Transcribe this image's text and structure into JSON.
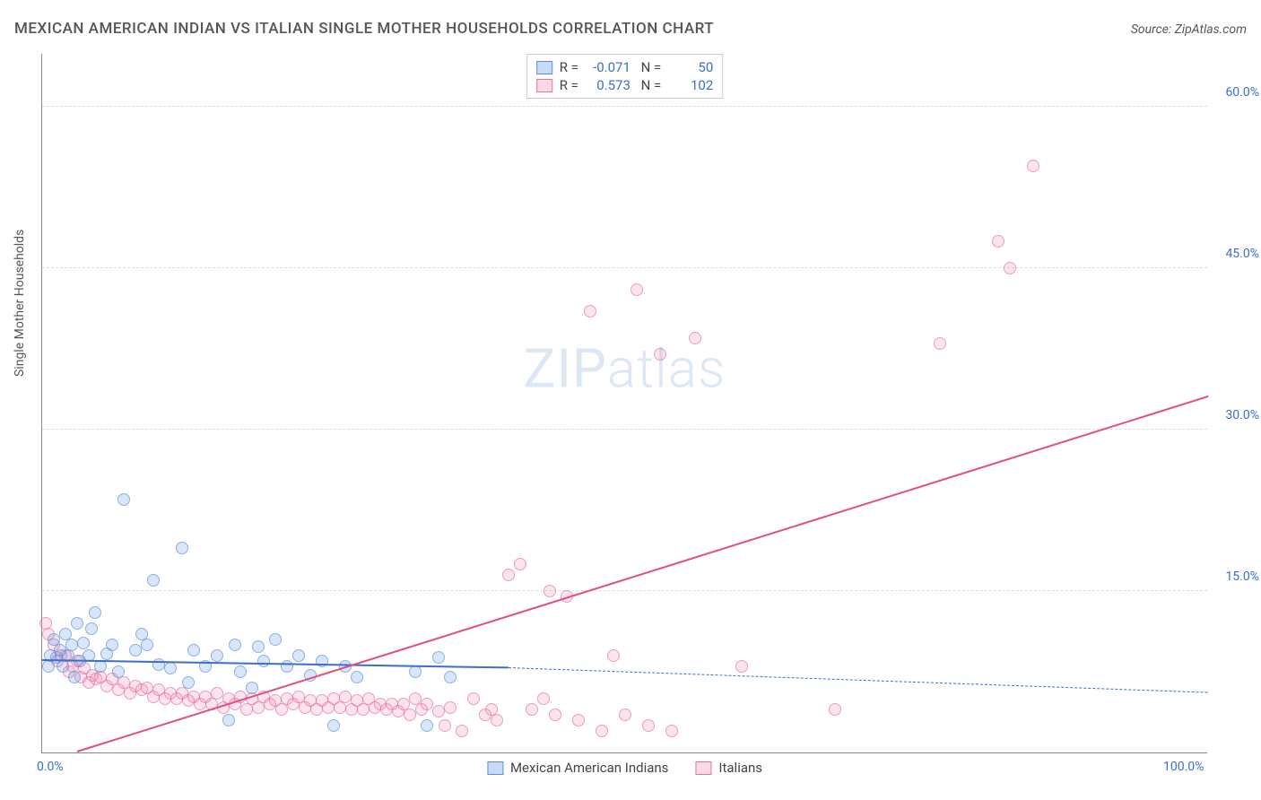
{
  "title": "MEXICAN AMERICAN INDIAN VS ITALIAN SINGLE MOTHER HOUSEHOLDS CORRELATION CHART",
  "source": "Source: ZipAtlas.com",
  "y_axis_label": "Single Mother Households",
  "watermark_bold": "ZIP",
  "watermark_light": "atlas",
  "chart": {
    "type": "scatter",
    "xlim": [
      0,
      100
    ],
    "ylim": [
      0,
      65
    ],
    "x_ticks": [
      {
        "pos": 0,
        "label": "0.0%"
      },
      {
        "pos": 100,
        "label": "100.0%"
      }
    ],
    "y_ticks": [
      {
        "pos": 15,
        "label": "15.0%"
      },
      {
        "pos": 30,
        "label": "30.0%"
      },
      {
        "pos": 45,
        "label": "45.0%"
      },
      {
        "pos": 60,
        "label": "60.0%"
      }
    ],
    "grid_positions_y": [
      15,
      30,
      45,
      60
    ],
    "grid_color": "#dddddd",
    "background": "#ffffff",
    "series": [
      {
        "name": "Mexican American Indians",
        "color_fill": "rgba(100,150,230,0.35)",
        "color_stroke": "#5a8fd6",
        "R": "-0.071",
        "N": "50",
        "trend": {
          "x1": 0,
          "y1": 8.5,
          "x2": 40,
          "y2": 7.8,
          "solid_until_x": 40,
          "dash_to_x": 100,
          "dash_y": 5.5,
          "color": "#3b6fc9",
          "width": 2
        },
        "points": [
          [
            0.5,
            8
          ],
          [
            0.7,
            9
          ],
          [
            1,
            10.5
          ],
          [
            1.2,
            8.8
          ],
          [
            1.5,
            9.5
          ],
          [
            1.8,
            8
          ],
          [
            2,
            11
          ],
          [
            2.2,
            9
          ],
          [
            2.5,
            10
          ],
          [
            2.8,
            7
          ],
          [
            3,
            12
          ],
          [
            3.2,
            8.5
          ],
          [
            3.5,
            10.2
          ],
          [
            4,
            9
          ],
          [
            4.2,
            11.5
          ],
          [
            4.5,
            13
          ],
          [
            5,
            8
          ],
          [
            5.5,
            9.2
          ],
          [
            6,
            10
          ],
          [
            6.5,
            7.5
          ],
          [
            7,
            23.5
          ],
          [
            8,
            9.5
          ],
          [
            8.5,
            11
          ],
          [
            9,
            10
          ],
          [
            9.5,
            16
          ],
          [
            10,
            8.2
          ],
          [
            11,
            7.8
          ],
          [
            12,
            19
          ],
          [
            12.5,
            6.5
          ],
          [
            13,
            9.5
          ],
          [
            14,
            8
          ],
          [
            15,
            9
          ],
          [
            16,
            3
          ],
          [
            16.5,
            10
          ],
          [
            17,
            7.5
          ],
          [
            18,
            6
          ],
          [
            18.5,
            9.8
          ],
          [
            19,
            8.5
          ],
          [
            20,
            10.5
          ],
          [
            21,
            8
          ],
          [
            22,
            9
          ],
          [
            23,
            7.2
          ],
          [
            24,
            8.5
          ],
          [
            25,
            2.5
          ],
          [
            26,
            8
          ],
          [
            27,
            7
          ],
          [
            32,
            7.5
          ],
          [
            33,
            2.5
          ],
          [
            34,
            8.8
          ],
          [
            35,
            7
          ]
        ]
      },
      {
        "name": "Italians",
        "color_fill": "rgba(240,130,170,0.30)",
        "color_stroke": "#e573a0",
        "R": "0.573",
        "N": "102",
        "trend": {
          "x1": 3,
          "y1": 0,
          "x2": 100,
          "y2": 33,
          "color": "#e14d84",
          "width": 2.2
        },
        "points": [
          [
            0.3,
            12
          ],
          [
            0.5,
            11
          ],
          [
            1,
            10
          ],
          [
            1.3,
            8.5
          ],
          [
            1.6,
            9
          ],
          [
            2,
            9
          ],
          [
            2.3,
            7.5
          ],
          [
            2.6,
            8
          ],
          [
            3,
            8.5
          ],
          [
            3.3,
            7
          ],
          [
            3.6,
            7.8
          ],
          [
            4,
            6.5
          ],
          [
            4.3,
            7.2
          ],
          [
            4.6,
            6.8
          ],
          [
            5,
            7
          ],
          [
            5.5,
            6.2
          ],
          [
            6,
            6.8
          ],
          [
            6.5,
            5.8
          ],
          [
            7,
            6.5
          ],
          [
            7.5,
            5.5
          ],
          [
            8,
            6.2
          ],
          [
            8.5,
            5.8
          ],
          [
            9,
            6
          ],
          [
            9.5,
            5.2
          ],
          [
            10,
            5.8
          ],
          [
            10.5,
            5
          ],
          [
            11,
            5.5
          ],
          [
            11.5,
            5
          ],
          [
            12,
            5.5
          ],
          [
            12.5,
            4.8
          ],
          [
            13,
            5.2
          ],
          [
            13.5,
            4.5
          ],
          [
            14,
            5.2
          ],
          [
            14.5,
            4.5
          ],
          [
            15,
            5.5
          ],
          [
            15.5,
            4.2
          ],
          [
            16,
            5
          ],
          [
            16.5,
            4.5
          ],
          [
            17,
            5.2
          ],
          [
            17.5,
            4
          ],
          [
            18,
            5
          ],
          [
            18.5,
            4.2
          ],
          [
            19,
            5.2
          ],
          [
            19.5,
            4.5
          ],
          [
            20,
            4.8
          ],
          [
            20.5,
            4
          ],
          [
            21,
            5
          ],
          [
            21.5,
            4.5
          ],
          [
            22,
            5.2
          ],
          [
            22.5,
            4.2
          ],
          [
            23,
            4.8
          ],
          [
            23.5,
            4
          ],
          [
            24,
            4.8
          ],
          [
            24.5,
            4.2
          ],
          [
            25,
            5
          ],
          [
            25.5,
            4.2
          ],
          [
            26,
            5.2
          ],
          [
            26.5,
            4
          ],
          [
            27,
            4.8
          ],
          [
            27.5,
            4
          ],
          [
            28,
            5
          ],
          [
            28.5,
            4.2
          ],
          [
            29,
            4.5
          ],
          [
            29.5,
            4
          ],
          [
            30,
            4.5
          ],
          [
            30.5,
            3.8
          ],
          [
            31,
            4.5
          ],
          [
            31.5,
            3.5
          ],
          [
            32,
            5
          ],
          [
            32.5,
            4
          ],
          [
            33,
            4.5
          ],
          [
            34,
            3.8
          ],
          [
            34.5,
            2.5
          ],
          [
            35,
            4.2
          ],
          [
            36,
            2
          ],
          [
            37,
            5
          ],
          [
            38,
            3.5
          ],
          [
            38.5,
            4
          ],
          [
            39,
            3
          ],
          [
            40,
            16.5
          ],
          [
            41,
            17.5
          ],
          [
            42,
            4
          ],
          [
            43,
            5
          ],
          [
            43.5,
            15
          ],
          [
            44,
            3.5
          ],
          [
            45,
            14.5
          ],
          [
            46,
            3
          ],
          [
            47,
            41
          ],
          [
            48,
            2
          ],
          [
            49,
            9
          ],
          [
            50,
            3.5
          ],
          [
            51,
            43
          ],
          [
            52,
            2.5
          ],
          [
            53,
            37
          ],
          [
            54,
            2
          ],
          [
            56,
            38.5
          ],
          [
            60,
            8
          ],
          [
            68,
            4
          ],
          [
            77,
            38
          ],
          [
            82,
            47.5
          ],
          [
            83,
            45
          ],
          [
            85,
            54.5
          ]
        ]
      }
    ]
  },
  "colors": {
    "title_text": "#555555",
    "axis_text": "#555555",
    "tick_text": "#3b6fc9",
    "watermark": "rgba(100,140,200,0.22)"
  }
}
